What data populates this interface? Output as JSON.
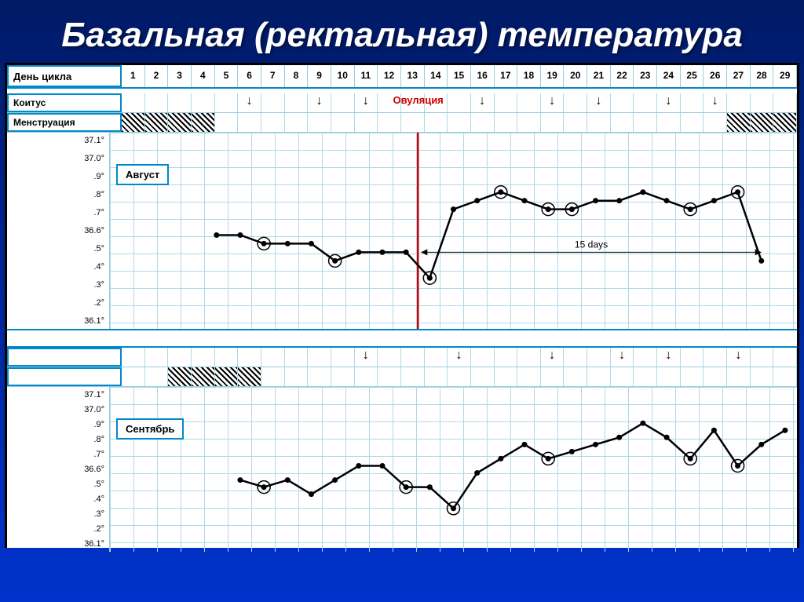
{
  "title": "Базальная (ректальная) температура",
  "header": {
    "day_label": "День цикла",
    "days": [
      1,
      2,
      3,
      4,
      5,
      6,
      7,
      8,
      9,
      10,
      11,
      12,
      13,
      14,
      15,
      16,
      17,
      18,
      19,
      20,
      21,
      22,
      23,
      24,
      25,
      26,
      27,
      28,
      29
    ]
  },
  "rows": {
    "coitus_label": "Коитус",
    "menstruation_label": "Менструация",
    "ovulation_label": "Овуляция"
  },
  "coitus_days_1": [
    6,
    9,
    11,
    16,
    19,
    21,
    24,
    26
  ],
  "coitus_days_2": [
    11,
    15,
    19,
    22,
    24,
    27
  ],
  "menstruation_days_1": [
    1,
    2,
    3,
    4,
    27,
    28,
    29
  ],
  "menstruation_days_2": [
    3,
    4,
    5,
    6
  ],
  "y_axis_labels": [
    "37.1°",
    "37.0°",
    ".9°",
    ".8°",
    ".7°",
    "36.6°",
    ".5°",
    ".4°",
    ".3°",
    ".2°",
    "36.1°"
  ],
  "chart1": {
    "month": "Август",
    "ovulation_day": 13.5,
    "days_text": "15 days",
    "values": [
      {
        "day": 5,
        "t": 36.6
      },
      {
        "day": 6,
        "t": 36.6
      },
      {
        "day": 7,
        "t": 36.55,
        "circle": true
      },
      {
        "day": 8,
        "t": 36.55
      },
      {
        "day": 9,
        "t": 36.55
      },
      {
        "day": 10,
        "t": 36.45,
        "circle": true
      },
      {
        "day": 11,
        "t": 36.5
      },
      {
        "day": 12,
        "t": 36.5
      },
      {
        "day": 13,
        "t": 36.5
      },
      {
        "day": 14,
        "t": 36.35,
        "circle": true
      },
      {
        "day": 15,
        "t": 36.75
      },
      {
        "day": 16,
        "t": 36.8
      },
      {
        "day": 17,
        "t": 36.85,
        "circle": true
      },
      {
        "day": 18,
        "t": 36.8
      },
      {
        "day": 19,
        "t": 36.75,
        "circle": true
      },
      {
        "day": 20,
        "t": 36.75,
        "circle": true
      },
      {
        "day": 21,
        "t": 36.8
      },
      {
        "day": 22,
        "t": 36.8
      },
      {
        "day": 23,
        "t": 36.85
      },
      {
        "day": 24,
        "t": 36.8
      },
      {
        "day": 25,
        "t": 36.75,
        "circle": true
      },
      {
        "day": 26,
        "t": 36.8
      },
      {
        "day": 27,
        "t": 36.85,
        "circle": true
      },
      {
        "day": 28,
        "t": 36.45
      }
    ]
  },
  "chart2": {
    "month": "Сентябрь",
    "values": [
      {
        "day": 6,
        "t": 36.55
      },
      {
        "day": 7,
        "t": 36.5,
        "circle": true
      },
      {
        "day": 8,
        "t": 36.55
      },
      {
        "day": 9,
        "t": 36.45
      },
      {
        "day": 10,
        "t": 36.55
      },
      {
        "day": 11,
        "t": 36.65
      },
      {
        "day": 12,
        "t": 36.65
      },
      {
        "day": 13,
        "t": 36.5,
        "circle": true
      },
      {
        "day": 14,
        "t": 36.5
      },
      {
        "day": 15,
        "t": 36.35,
        "circle": true
      },
      {
        "day": 16,
        "t": 36.6
      },
      {
        "day": 17,
        "t": 36.7
      },
      {
        "day": 18,
        "t": 36.8
      },
      {
        "day": 19,
        "t": 36.7,
        "circle": true
      },
      {
        "day": 20,
        "t": 36.75
      },
      {
        "day": 21,
        "t": 36.8
      },
      {
        "day": 22,
        "t": 36.85
      },
      {
        "day": 23,
        "t": 36.95
      },
      {
        "day": 24,
        "t": 36.85
      },
      {
        "day": 25,
        "t": 36.7,
        "circle": true
      },
      {
        "day": 26,
        "t": 36.9
      },
      {
        "day": 27,
        "t": 36.65,
        "circle": true
      },
      {
        "day": 28,
        "t": 36.8
      },
      {
        "day": 29,
        "t": 36.9
      }
    ]
  },
  "style": {
    "y_min": 36.1,
    "y_max": 37.15,
    "line_color": "#000000",
    "marker_size": 3.5,
    "circle_size": 8,
    "ovulation_color": "#cc0000",
    "grid_color": "#b0d8e8",
    "border_color": "#0088cc",
    "background": "#ffffff"
  }
}
